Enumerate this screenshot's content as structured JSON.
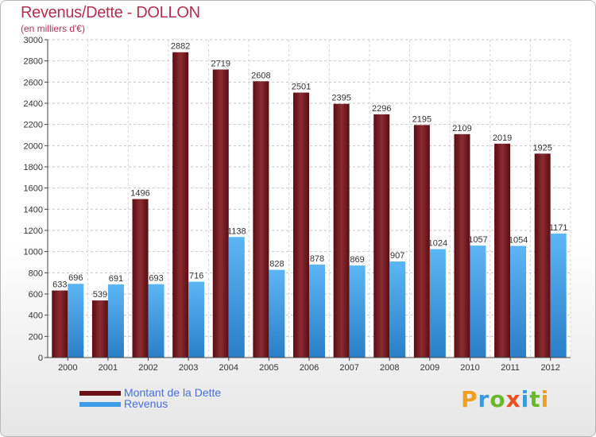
{
  "header": {
    "title": "Revenus/Dette - DOLLON",
    "subtitle": "(en milliers d'€)"
  },
  "brand": {
    "letters": [
      "P",
      "r",
      "o",
      "x",
      "i",
      "t",
      "i"
    ]
  },
  "colors": {
    "title": "#b0304f",
    "debt": "#7a1f24",
    "revenue": "#3e9be6",
    "legend_text": "#4a6fd4"
  },
  "chart_data": {
    "type": "bar",
    "title": "Revenus/Dette - DOLLON",
    "subtitle": "(en milliers d'€)",
    "xlabel": "",
    "ylabel": "",
    "ylim": [
      0,
      3000
    ],
    "ytick_step": 200,
    "yticks": [
      "0",
      "200",
      "400",
      "600",
      "800",
      "1000",
      "1200",
      "1400",
      "1600",
      "1800",
      "2000",
      "2200",
      "2400",
      "2600",
      "2800",
      "3000"
    ],
    "grid": true,
    "legend_position": "bottom-left",
    "categories": [
      "2000",
      "2001",
      "2002",
      "2003",
      "2004",
      "2005",
      "2006",
      "2007",
      "2008",
      "2009",
      "2010",
      "2011",
      "2012"
    ],
    "series": [
      {
        "name": "Montant de la Dette",
        "color": "#7a1f24",
        "values": [
          633,
          539,
          1496,
          2882,
          2719,
          2608,
          2501,
          2395,
          2296,
          2195,
          2109,
          2019,
          1925
        ]
      },
      {
        "name": "Revenus",
        "color": "#3e9be6",
        "values": [
          696,
          691,
          693,
          716,
          1138,
          828,
          878,
          869,
          907,
          1024,
          1057,
          1054,
          1171
        ]
      }
    ]
  }
}
